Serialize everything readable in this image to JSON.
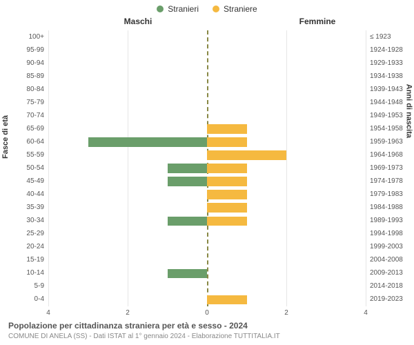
{
  "chart": {
    "type": "population-pyramid",
    "legend": [
      {
        "label": "Stranieri",
        "color": "#6a9e6a"
      },
      {
        "label": "Straniere",
        "color": "#f5b940"
      }
    ],
    "column_titles": {
      "left": "Maschi",
      "right": "Femmine"
    },
    "y_axis_left_title": "Fasce di età",
    "y_axis_right_title": "Anni di nascita",
    "x_max": 4,
    "x_ticks": [
      4,
      2,
      0,
      2,
      4
    ],
    "grid_color": "#e6e6e6",
    "centerline_color": "#888844",
    "male_color": "#6a9e6a",
    "female_color": "#f5b940",
    "background_color": "#ffffff",
    "label_fontsize": 10,
    "title_fontsize": 12,
    "rows": [
      {
        "age": "100+",
        "birth": "≤ 1923",
        "male": 0,
        "female": 0
      },
      {
        "age": "95-99",
        "birth": "1924-1928",
        "male": 0,
        "female": 0
      },
      {
        "age": "90-94",
        "birth": "1929-1933",
        "male": 0,
        "female": 0
      },
      {
        "age": "85-89",
        "birth": "1934-1938",
        "male": 0,
        "female": 0
      },
      {
        "age": "80-84",
        "birth": "1939-1943",
        "male": 0,
        "female": 0
      },
      {
        "age": "75-79",
        "birth": "1944-1948",
        "male": 0,
        "female": 0
      },
      {
        "age": "70-74",
        "birth": "1949-1953",
        "male": 0,
        "female": 0
      },
      {
        "age": "65-69",
        "birth": "1954-1958",
        "male": 0,
        "female": 1
      },
      {
        "age": "60-64",
        "birth": "1959-1963",
        "male": 3,
        "female": 1
      },
      {
        "age": "55-59",
        "birth": "1964-1968",
        "male": 0,
        "female": 2
      },
      {
        "age": "50-54",
        "birth": "1969-1973",
        "male": 1,
        "female": 1
      },
      {
        "age": "45-49",
        "birth": "1974-1978",
        "male": 1,
        "female": 1
      },
      {
        "age": "40-44",
        "birth": "1979-1983",
        "male": 0,
        "female": 1
      },
      {
        "age": "35-39",
        "birth": "1984-1988",
        "male": 0,
        "female": 1
      },
      {
        "age": "30-34",
        "birth": "1989-1993",
        "male": 1,
        "female": 1
      },
      {
        "age": "25-29",
        "birth": "1994-1998",
        "male": 0,
        "female": 0
      },
      {
        "age": "20-24",
        "birth": "1999-2003",
        "male": 0,
        "female": 0
      },
      {
        "age": "15-19",
        "birth": "2004-2008",
        "male": 0,
        "female": 0
      },
      {
        "age": "10-14",
        "birth": "2009-2013",
        "male": 1,
        "female": 0
      },
      {
        "age": "5-9",
        "birth": "2014-2018",
        "male": 0,
        "female": 0
      },
      {
        "age": "0-4",
        "birth": "2019-2023",
        "male": 0,
        "female": 1
      }
    ],
    "footer_title": "Popolazione per cittadinanza straniera per età e sesso - 2024",
    "footer_sub": "COMUNE DI ANELA (SS) - Dati ISTAT al 1° gennaio 2024 - Elaborazione TUTTITALIA.IT"
  }
}
